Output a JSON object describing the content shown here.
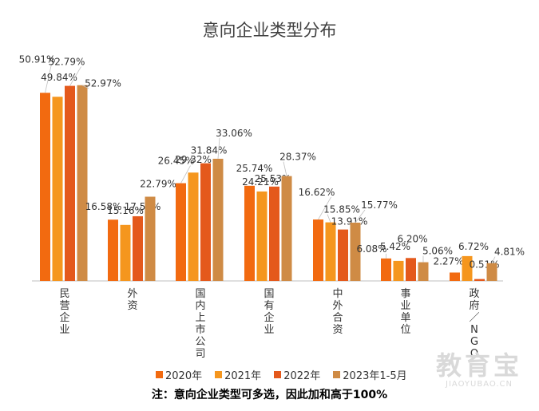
{
  "chart_data": {
    "type": "bar",
    "title": "意向企业类型分布",
    "categories": [
      "民营企业",
      "外资",
      "国内上市公司",
      "国有企业",
      "中外合资",
      "事业单位",
      "政府／NGO"
    ],
    "series": [
      {
        "name": "2020年",
        "color": "#f26a10",
        "values": [
          50.91,
          16.58,
          26.45,
          25.74,
          16.62,
          6.08,
          2.27
        ],
        "labels": [
          "50.91%",
          "16.58%",
          "26.45%",
          "25.74%",
          "16.62%",
          "6.08%",
          "2.27%"
        ]
      },
      {
        "name": "2021年",
        "color": "#f5961e",
        "values": [
          49.84,
          15.16,
          29.32,
          24.21,
          15.85,
          5.42,
          6.72
        ],
        "labels": [
          "49.84%",
          "15.16%",
          "29.32%",
          "24.21%",
          "15.85%",
          "5.42%",
          "6.72%"
        ]
      },
      {
        "name": "2022年",
        "color": "#e4591c",
        "values": [
          52.79,
          17.5,
          31.84,
          25.53,
          13.91,
          6.2,
          0.51
        ],
        "labels": [
          "52.79%",
          "17.50%",
          "31.84%",
          "25.53%",
          "13.91%",
          "6.20%",
          "0.51%"
        ]
      },
      {
        "name": "2023年1-5月",
        "color": "#cf8b45",
        "values": [
          52.97,
          22.79,
          33.06,
          28.37,
          15.77,
          5.06,
          4.81
        ],
        "labels": [
          "52.97%",
          "22.79%",
          "33.06%",
          "28.37%",
          "15.77%",
          "5.06%",
          "4.81%"
        ]
      }
    ],
    "ylim": [
      0,
      60
    ],
    "grid": false,
    "legend_position": "bottom"
  },
  "note": "注：意向企业类型可多选，因此加和高于100%",
  "watermark": {
    "main": "教育宝",
    "sub": "JIAOYUBAO.CN"
  }
}
